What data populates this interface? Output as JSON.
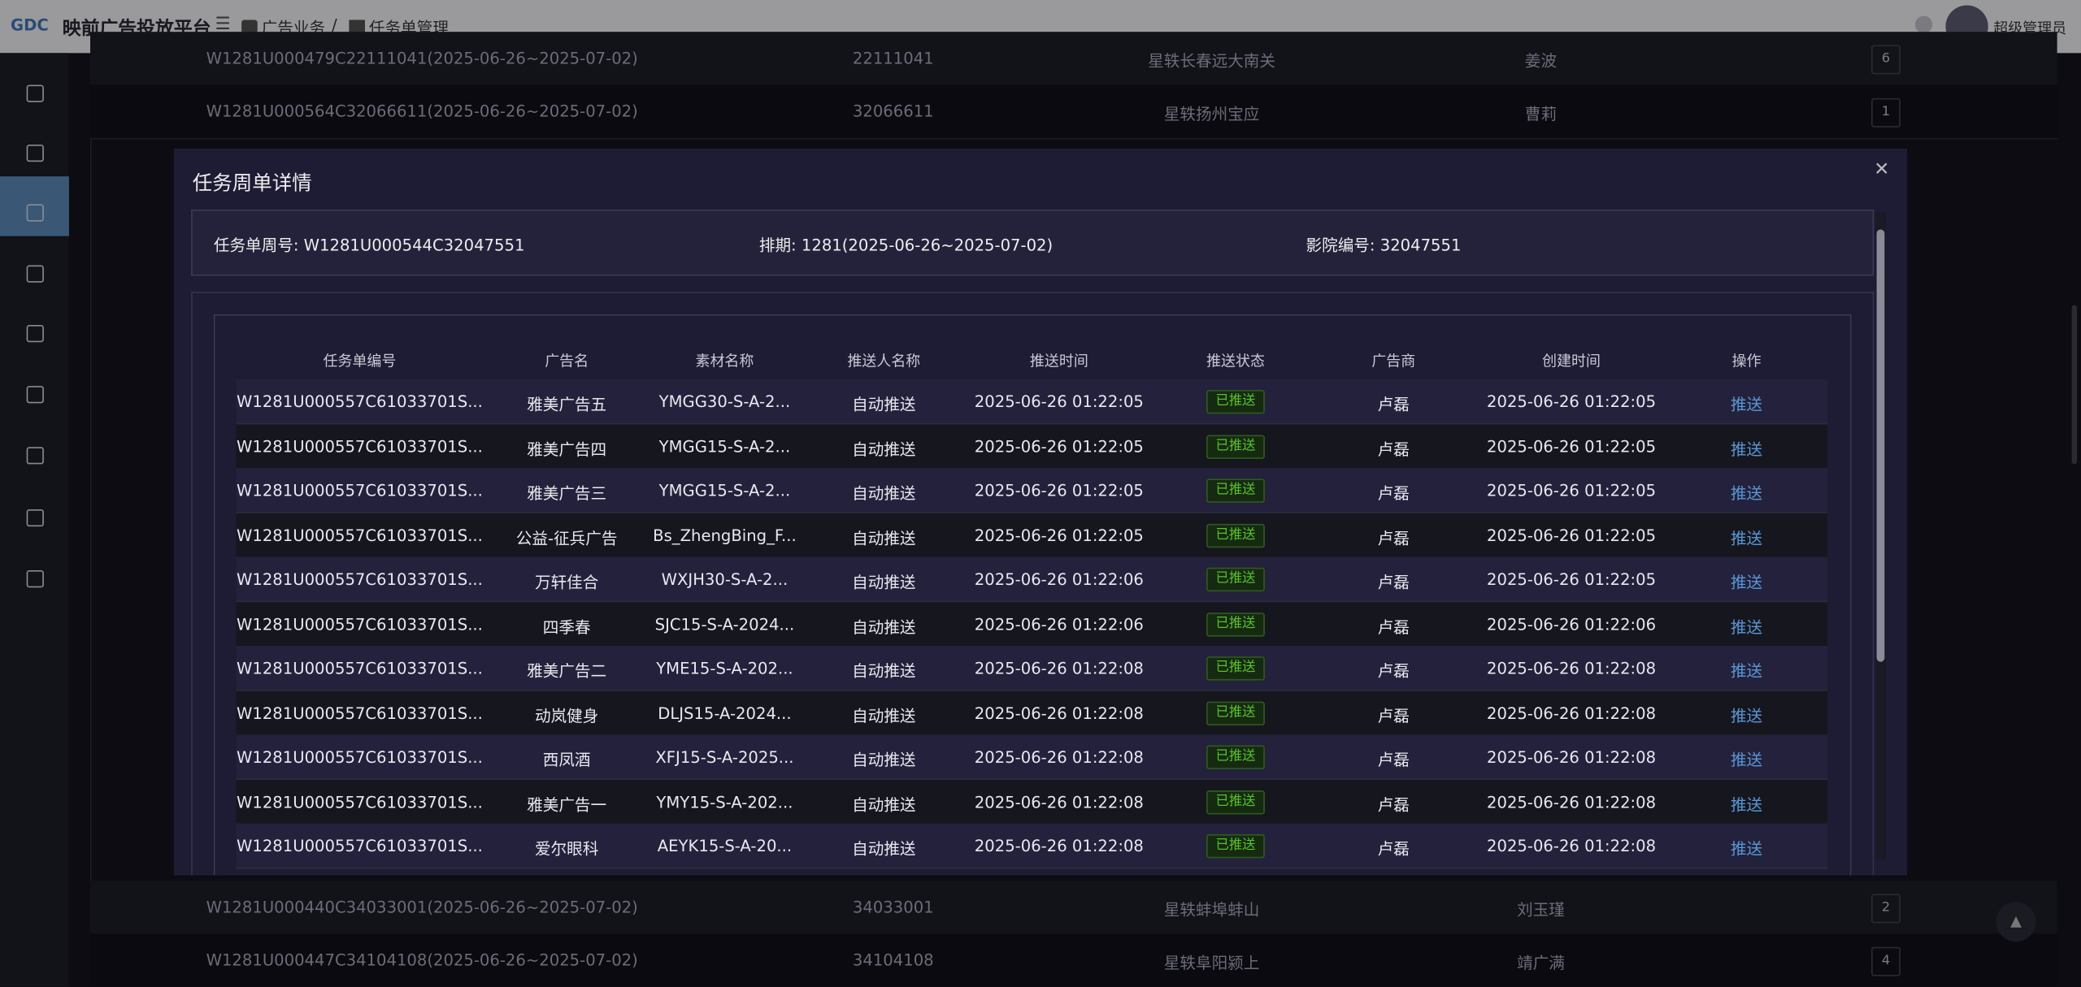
{
  "header": {
    "logo": "GDC",
    "title": "映前广告投放平台",
    "breadcrumb": [
      "广告业务",
      "任务单管理"
    ],
    "separator": "/",
    "user": "超级管理员"
  },
  "background_rows": [
    [
      "W1281U000479C22111041(2025-06-26~2025-07-02)",
      "22111041",
      "星轶长春远大南关",
      "姜波",
      "6"
    ],
    [
      "W1281U000564C32066611(2025-06-26~2025-07-02)",
      "32066611",
      "星轶扬州宝应",
      "曹莉",
      "1"
    ],
    [
      "W1281U000440C34033001(2025-06-26~2025-07-02)",
      "34033001",
      "星轶蚌埠蚌山",
      "刘玉瑾",
      "2"
    ],
    [
      "W1281U000447C34104108(2025-06-26~2025-07-02)",
      "34104108",
      "星轶阜阳颍上",
      "靖广满",
      "4"
    ]
  ],
  "modal": {
    "title": "任务周单详情",
    "info": [
      "任务单周号: W1281U000544C32047551",
      "排期: 1281(2025-06-26~2025-07-02)",
      "影院编号: 32047551"
    ],
    "table": {
      "columns": [
        "任务单编号",
        "广告名",
        "素材名称",
        "推送人名称",
        "推送时间",
        "推送状态",
        "广告商",
        "创建时间",
        "操作"
      ],
      "rows": [
        [
          "W1281U000557C61033701S...",
          "雅美广告五",
          "YMGG30-S-A-2...",
          "自动推送",
          "2025-06-26 01:22:05",
          "已推送",
          "卢磊",
          "2025-06-26 01:22:05",
          "推送"
        ],
        [
          "W1281U000557C61033701S...",
          "雅美广告四",
          "YMGG15-S-A-2...",
          "自动推送",
          "2025-06-26 01:22:05",
          "已推送",
          "卢磊",
          "2025-06-26 01:22:05",
          "推送"
        ],
        [
          "W1281U000557C61033701S...",
          "雅美广告三",
          "YMGG15-S-A-2...",
          "自动推送",
          "2025-06-26 01:22:05",
          "已推送",
          "卢磊",
          "2025-06-26 01:22:05",
          "推送"
        ],
        [
          "W1281U000557C61033701S...",
          "公益-征兵广告",
          "Bs_ZhengBing_F...",
          "自动推送",
          "2025-06-26 01:22:05",
          "已推送",
          "卢磊",
          "2025-06-26 01:22:05",
          "推送"
        ],
        [
          "W1281U000557C61033701S...",
          "万轩佳合",
          "WXJH30-S-A-2...",
          "自动推送",
          "2025-06-26 01:22:06",
          "已推送",
          "卢磊",
          "2025-06-26 01:22:05",
          "推送"
        ],
        [
          "W1281U000557C61033701S...",
          "四季春",
          "SJC15-S-A-2024...",
          "自动推送",
          "2025-06-26 01:22:06",
          "已推送",
          "卢磊",
          "2025-06-26 01:22:06",
          "推送"
        ],
        [
          "W1281U000557C61033701S...",
          "雅美广告二",
          "YME15-S-A-202...",
          "自动推送",
          "2025-06-26 01:22:08",
          "已推送",
          "卢磊",
          "2025-06-26 01:22:08",
          "推送"
        ],
        [
          "W1281U000557C61033701S...",
          "动岚健身",
          "DLJS15-A-2024...",
          "自动推送",
          "2025-06-26 01:22:08",
          "已推送",
          "卢磊",
          "2025-06-26 01:22:08",
          "推送"
        ],
        [
          "W1281U000557C61033701S...",
          "西凤酒",
          "XFJ15-S-A-2025...",
          "自动推送",
          "2025-06-26 01:22:08",
          "已推送",
          "卢磊",
          "2025-06-26 01:22:08",
          "推送"
        ],
        [
          "W1281U000557C61033701S...",
          "雅美广告一",
          "YMY15-S-A-202...",
          "自动推送",
          "2025-06-26 01:22:08",
          "已推送",
          "卢磊",
          "2025-06-26 01:22:08",
          "推送"
        ],
        [
          "W1281U000557C61033701S...",
          "爱尔眼科",
          "AEYK15-S-A-20...",
          "自动推送",
          "2025-06-26 01:22:08",
          "已推送",
          "卢磊",
          "2025-06-26 01:22:08",
          "推送"
        ]
      ]
    }
  }
}
